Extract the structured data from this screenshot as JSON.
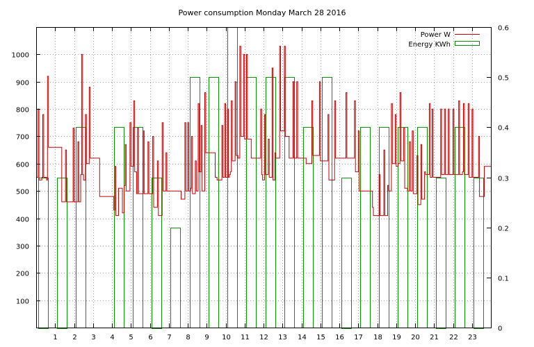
{
  "chart_data": {
    "type": "line",
    "title": "Power consumption Monday March 28 2016",
    "x_ticks": [
      "1",
      "2",
      "3",
      "4",
      "5",
      "6",
      "7",
      "8",
      "9",
      "10",
      "11",
      "12",
      "13",
      "14",
      "15",
      "16",
      "17",
      "18",
      "19",
      "20",
      "21",
      "22",
      "23"
    ],
    "xlim": [
      0,
      24
    ],
    "y_ticks": [
      "100",
      "200",
      "300",
      "400",
      "500",
      "600",
      "700",
      "800",
      "900",
      "1000"
    ],
    "ylim": [
      0,
      1100
    ],
    "y2_ticks": [
      "0",
      "0.1",
      "0.2",
      "0.3",
      "0.4",
      "0.5",
      "0.6"
    ],
    "y2lim": [
      0,
      0.6
    ],
    "grid": true,
    "legend_position": "top-right",
    "series": [
      {
        "name": "Power W",
        "color": "#cc0000",
        "axis": "left",
        "style": "step",
        "points": [
          [
            0.0,
            550
          ],
          [
            0.1,
            800
          ],
          [
            0.15,
            540
          ],
          [
            0.3,
            550
          ],
          [
            0.35,
            780
          ],
          [
            0.4,
            550
          ],
          [
            0.55,
            540
          ],
          [
            0.6,
            920
          ],
          [
            0.65,
            660
          ],
          [
            1.3,
            660
          ],
          [
            1.35,
            460
          ],
          [
            1.5,
            460
          ],
          [
            1.55,
            650
          ],
          [
            1.6,
            460
          ],
          [
            1.9,
            460
          ],
          [
            1.95,
            730
          ],
          [
            2.0,
            460
          ],
          [
            2.15,
            460
          ],
          [
            2.2,
            680
          ],
          [
            2.25,
            460
          ],
          [
            2.35,
            560
          ],
          [
            2.4,
            1000
          ],
          [
            2.45,
            560
          ],
          [
            2.5,
            540
          ],
          [
            2.6,
            780
          ],
          [
            2.65,
            600
          ],
          [
            2.8,
            880
          ],
          [
            2.85,
            620
          ],
          [
            3.35,
            480
          ],
          [
            4.0,
            480
          ],
          [
            4.1,
            430
          ],
          [
            4.15,
            590
          ],
          [
            4.2,
            410
          ],
          [
            4.35,
            510
          ],
          [
            4.5,
            510
          ],
          [
            4.55,
            420
          ],
          [
            4.65,
            520
          ],
          [
            4.7,
            670
          ],
          [
            4.75,
            500
          ],
          [
            4.9,
            500
          ],
          [
            4.95,
            750
          ],
          [
            5.0,
            590
          ],
          [
            5.15,
            830
          ],
          [
            5.2,
            570
          ],
          [
            5.3,
            490
          ],
          [
            5.35,
            730
          ],
          [
            5.4,
            490
          ],
          [
            5.6,
            490
          ],
          [
            5.65,
            720
          ],
          [
            5.7,
            490
          ],
          [
            5.9,
            680
          ],
          [
            5.95,
            490
          ],
          [
            6.1,
            490
          ],
          [
            6.15,
            700
          ],
          [
            6.2,
            440
          ],
          [
            6.35,
            440
          ],
          [
            6.4,
            610
          ],
          [
            6.45,
            410
          ],
          [
            6.6,
            410
          ],
          [
            6.65,
            750
          ],
          [
            6.7,
            500
          ],
          [
            6.85,
            640
          ],
          [
            6.9,
            500
          ],
          [
            7.6,
            500
          ],
          [
            7.65,
            470
          ],
          [
            7.8,
            470
          ],
          [
            7.85,
            750
          ],
          [
            7.9,
            500
          ],
          [
            8.0,
            750
          ],
          [
            8.05,
            500
          ],
          [
            8.15,
            510
          ],
          [
            8.2,
            700
          ],
          [
            8.25,
            490
          ],
          [
            8.35,
            490
          ],
          [
            8.4,
            610
          ],
          [
            8.45,
            500
          ],
          [
            8.55,
            820
          ],
          [
            8.6,
            570
          ],
          [
            8.7,
            740
          ],
          [
            8.75,
            500
          ],
          [
            8.9,
            860
          ],
          [
            8.95,
            640
          ],
          [
            9.4,
            640
          ],
          [
            9.45,
            550
          ],
          [
            9.55,
            540
          ],
          [
            9.75,
            540
          ],
          [
            9.8,
            740
          ],
          [
            9.85,
            550
          ],
          [
            9.95,
            820
          ],
          [
            10.0,
            550
          ],
          [
            10.1,
            800
          ],
          [
            10.15,
            550
          ],
          [
            10.2,
            560
          ],
          [
            10.25,
            570
          ],
          [
            10.3,
            830
          ],
          [
            10.35,
            610
          ],
          [
            10.45,
            610
          ],
          [
            10.5,
            900
          ],
          [
            10.55,
            630
          ],
          [
            10.65,
            620
          ],
          [
            10.75,
            1030
          ],
          [
            10.8,
            700
          ],
          [
            10.95,
            1000
          ],
          [
            11.0,
            690
          ],
          [
            11.1,
            1000
          ],
          [
            11.15,
            690
          ],
          [
            11.35,
            620
          ],
          [
            11.5,
            620
          ],
          [
            11.85,
            800
          ],
          [
            11.9,
            560
          ],
          [
            11.95,
            540
          ],
          [
            12.05,
            780
          ],
          [
            12.1,
            560
          ],
          [
            12.2,
            560
          ],
          [
            12.25,
            690
          ],
          [
            12.3,
            550
          ],
          [
            12.4,
            550
          ],
          [
            12.45,
            950
          ],
          [
            12.5,
            540
          ],
          [
            12.6,
            640
          ],
          [
            12.65,
            620
          ],
          [
            12.85,
            1030
          ],
          [
            12.9,
            720
          ],
          [
            13.1,
            1030
          ],
          [
            13.15,
            700
          ],
          [
            13.35,
            620
          ],
          [
            13.5,
            620
          ],
          [
            13.55,
            900
          ],
          [
            13.6,
            620
          ],
          [
            13.7,
            620
          ],
          [
            13.75,
            900
          ],
          [
            13.8,
            620
          ],
          [
            14.25,
            600
          ],
          [
            14.5,
            600
          ],
          [
            14.55,
            830
          ],
          [
            14.6,
            630
          ],
          [
            14.95,
            900
          ],
          [
            15.0,
            610
          ],
          [
            15.4,
            780
          ],
          [
            15.45,
            540
          ],
          [
            15.7,
            540
          ],
          [
            15.75,
            830
          ],
          [
            15.8,
            620
          ],
          [
            16.35,
            860
          ],
          [
            16.4,
            620
          ],
          [
            16.75,
            620
          ],
          [
            16.8,
            830
          ],
          [
            16.85,
            570
          ],
          [
            16.95,
            570
          ],
          [
            17.0,
            720
          ],
          [
            17.05,
            500
          ],
          [
            17.7,
            500
          ],
          [
            17.75,
            440
          ],
          [
            17.8,
            410
          ],
          [
            18.05,
            410
          ],
          [
            18.1,
            560
          ],
          [
            18.15,
            410
          ],
          [
            18.3,
            410
          ],
          [
            18.35,
            650
          ],
          [
            18.4,
            410
          ],
          [
            18.5,
            410
          ],
          [
            18.55,
            520
          ],
          [
            18.6,
            500
          ],
          [
            18.75,
            820
          ],
          [
            18.8,
            600
          ],
          [
            18.9,
            600
          ],
          [
            18.95,
            780
          ],
          [
            19.0,
            590
          ],
          [
            19.1,
            600
          ],
          [
            19.2,
            860
          ],
          [
            19.25,
            610
          ],
          [
            19.35,
            610
          ],
          [
            19.4,
            730
          ],
          [
            19.45,
            510
          ],
          [
            19.6,
            500
          ],
          [
            19.7,
            680
          ],
          [
            19.75,
            500
          ],
          [
            19.8,
            500
          ],
          [
            19.85,
            720
          ],
          [
            19.9,
            490
          ],
          [
            20.05,
            490
          ],
          [
            20.1,
            630
          ],
          [
            20.15,
            450
          ],
          [
            20.25,
            450
          ],
          [
            20.3,
            670
          ],
          [
            20.35,
            470
          ],
          [
            20.45,
            470
          ],
          [
            20.5,
            570
          ],
          [
            20.55,
            560
          ],
          [
            20.7,
            560
          ],
          [
            20.75,
            820
          ],
          [
            20.8,
            550
          ],
          [
            20.85,
            550
          ],
          [
            20.9,
            800
          ],
          [
            20.95,
            550
          ],
          [
            21.35,
            800
          ],
          [
            21.4,
            560
          ],
          [
            21.5,
            560
          ],
          [
            21.55,
            800
          ],
          [
            21.6,
            560
          ],
          [
            21.7,
            560
          ],
          [
            21.75,
            800
          ],
          [
            21.8,
            560
          ],
          [
            21.95,
            560
          ],
          [
            22.0,
            800
          ],
          [
            22.05,
            560
          ],
          [
            22.25,
            560
          ],
          [
            22.3,
            830
          ],
          [
            22.35,
            560
          ],
          [
            22.5,
            570
          ],
          [
            22.55,
            820
          ],
          [
            22.6,
            560
          ],
          [
            22.75,
            560
          ],
          [
            22.8,
            820
          ],
          [
            22.85,
            550
          ],
          [
            22.95,
            550
          ],
          [
            23.0,
            800
          ],
          [
            23.05,
            550
          ],
          [
            23.3,
            550
          ],
          [
            23.35,
            700
          ],
          [
            23.4,
            480
          ],
          [
            23.6,
            480
          ],
          [
            23.65,
            590
          ],
          [
            24.0,
            590
          ]
        ]
      },
      {
        "name": "Energy KWh",
        "color": "#009900",
        "axis": "right",
        "style": "bar",
        "bars": [
          [
            0,
            0.3
          ],
          [
            1,
            0.3
          ],
          [
            2,
            0.4
          ],
          [
            3,
            0
          ],
          [
            4,
            0.4
          ],
          [
            5,
            0.4
          ],
          [
            6,
            0.3
          ],
          [
            7,
            0.2
          ],
          [
            8,
            0.5
          ],
          [
            9,
            0.5
          ],
          [
            10,
            0.6
          ],
          [
            11,
            0.5
          ],
          [
            12,
            0.5
          ],
          [
            13,
            0.5
          ],
          [
            14,
            0.4
          ],
          [
            15,
            0.5
          ],
          [
            16,
            0.3
          ],
          [
            17,
            0.4
          ],
          [
            18,
            0.4
          ],
          [
            19,
            0.4
          ],
          [
            20,
            0.4
          ],
          [
            21,
            0.3
          ],
          [
            22,
            0.4
          ],
          [
            23,
            0.3
          ]
        ]
      }
    ]
  }
}
